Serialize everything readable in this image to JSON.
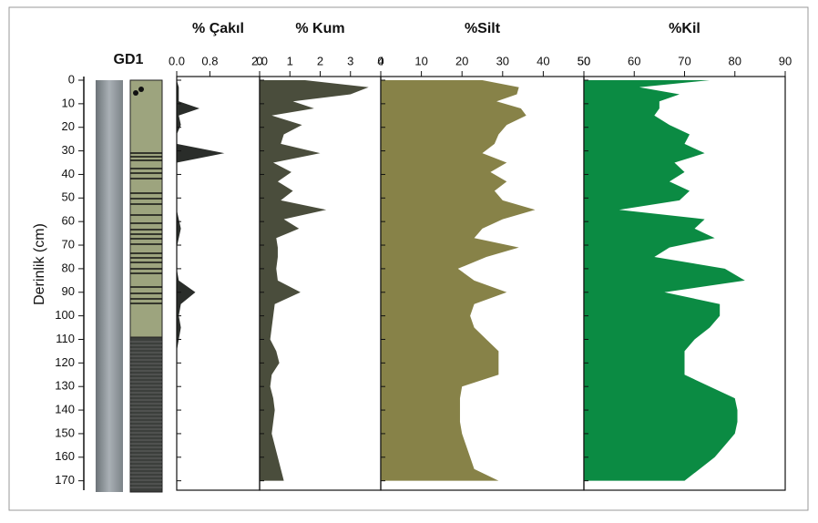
{
  "core_label": "GD1",
  "chart_data": [
    {
      "type": "area",
      "title": "% Çakıl",
      "color": "#2a2d2a",
      "depth": [
        0,
        3,
        6,
        9,
        12,
        15,
        19,
        23,
        27,
        31,
        35,
        39,
        43,
        47,
        51,
        55,
        59,
        63,
        67,
        71,
        75,
        80,
        85,
        90,
        95,
        100,
        105,
        110,
        115,
        120,
        125,
        130,
        135,
        140,
        145,
        150,
        155,
        160,
        165,
        170
      ],
      "values": [
        0,
        0.05,
        0.05,
        0.05,
        0.55,
        0.05,
        0.1,
        0,
        0,
        1.15,
        0,
        0,
        0,
        0,
        0,
        0,
        0.05,
        0.1,
        0.05,
        0,
        0,
        0,
        0.05,
        0.45,
        0.1,
        0.05,
        0.1,
        0.05,
        0,
        0,
        0,
        0,
        0,
        0,
        0,
        0,
        0,
        0,
        0,
        0
      ],
      "xlim": [
        0,
        2
      ],
      "xticks": [
        {
          "value": 0,
          "label": "0.0"
        },
        {
          "value": 0.8,
          "label": "0.8"
        },
        {
          "value": 2,
          "label": "2.0"
        }
      ],
      "ylim": [
        0,
        174
      ],
      "yticks": [
        0,
        10,
        20,
        30,
        40,
        50,
        60,
        70,
        80,
        90,
        100,
        110,
        120,
        130,
        140,
        150,
        160,
        170
      ],
      "ylabel": "Derinlik (cm)"
    },
    {
      "type": "area",
      "title": "% Kum",
      "color": "#4a4d3c",
      "depth": [
        0,
        3,
        6,
        9,
        12,
        15,
        19,
        23,
        27,
        31,
        35,
        39,
        43,
        47,
        51,
        55,
        59,
        63,
        67,
        71,
        75,
        80,
        85,
        90,
        95,
        100,
        105,
        110,
        115,
        120,
        125,
        130,
        135,
        140,
        145,
        150,
        155,
        160,
        165,
        170
      ],
      "values": [
        1.5,
        3.6,
        3.0,
        1.1,
        1.8,
        0.4,
        1.4,
        0.8,
        0.7,
        2.0,
        0.45,
        1.05,
        0.6,
        1.1,
        0.7,
        2.2,
        0.8,
        1.3,
        0.55,
        0.6,
        0.6,
        0.55,
        0.6,
        1.35,
        0.5,
        0.45,
        0.4,
        0.35,
        0.55,
        0.65,
        0.4,
        0.35,
        0.45,
        0.5,
        0.45,
        0.4,
        0.5,
        0.6,
        0.7,
        0.8
      ],
      "xlim": [
        0,
        4
      ],
      "xticks": [
        0,
        1,
        2,
        3,
        4
      ],
      "ylim": [
        0,
        174
      ]
    },
    {
      "type": "area",
      "title": "%Silt",
      "color": "#878248",
      "depth": [
        0,
        3,
        6,
        9,
        12,
        15,
        19,
        23,
        27,
        31,
        35,
        39,
        43,
        47,
        51,
        55,
        59,
        63,
        67,
        71,
        75,
        80,
        85,
        90,
        95,
        100,
        105,
        110,
        115,
        120,
        125,
        130,
        135,
        140,
        145,
        150,
        155,
        160,
        165,
        170
      ],
      "values": [
        25,
        34,
        33.5,
        28.5,
        34.5,
        35.8,
        31,
        29,
        28,
        25,
        31,
        27,
        31,
        28,
        30,
        38,
        30,
        25,
        23,
        34,
        26,
        19,
        23,
        31,
        23,
        22,
        23,
        26,
        29,
        29,
        29,
        20,
        19.5,
        19.5,
        19.5,
        20,
        21,
        22,
        23,
        29
      ],
      "xlim": [
        0,
        50
      ],
      "xticks": [
        0,
        10,
        20,
        30,
        40,
        50
      ],
      "ylim": [
        0,
        174
      ]
    },
    {
      "type": "area",
      "title": "%Kil",
      "color": "#0b8b43",
      "depth": [
        0,
        3,
        6,
        9,
        12,
        15,
        19,
        23,
        27,
        31,
        35,
        39,
        43,
        47,
        51,
        55,
        59,
        63,
        67,
        71,
        75,
        80,
        85,
        90,
        95,
        100,
        105,
        110,
        115,
        120,
        125,
        130,
        135,
        140,
        145,
        150,
        155,
        160,
        165,
        170
      ],
      "values": [
        75,
        61,
        69,
        65,
        65,
        64,
        67,
        71,
        70,
        74,
        68,
        70,
        67,
        71,
        69,
        57,
        74,
        72,
        76,
        67,
        64,
        78,
        82,
        66,
        77,
        77,
        75,
        72,
        70,
        70,
        70,
        75,
        80,
        80.5,
        80.5,
        80,
        78,
        76,
        73,
        70
      ],
      "xlim": [
        50,
        90
      ],
      "xticks": [
        50,
        60,
        70,
        80,
        90
      ],
      "ylim": [
        0,
        174
      ]
    }
  ]
}
